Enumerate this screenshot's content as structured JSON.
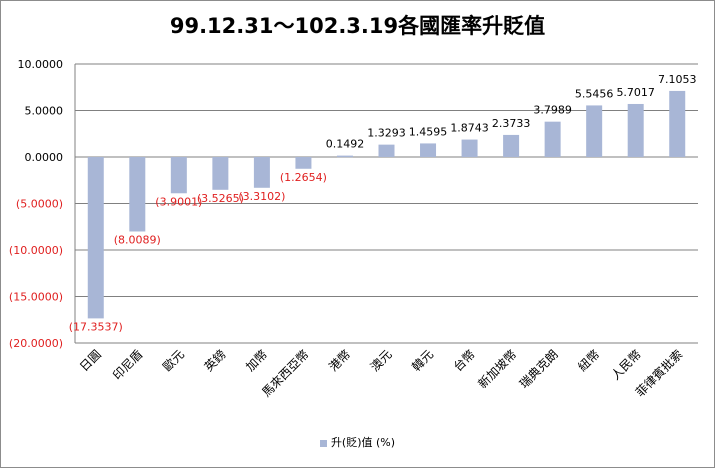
{
  "chart_data": {
    "type": "bar",
    "title": "99.12.31～102.3.19各國匯率升貶值",
    "categories": [
      "日圓",
      "印尼盾",
      "歐元",
      "英鎊",
      "加幣",
      "馬來西亞幣",
      "港幣",
      "澳元",
      "韓元",
      "台幣",
      "新加坡幣",
      "瑞典克朗",
      "紐幣",
      "人民幣",
      "菲律賓批索"
    ],
    "series": [
      {
        "name": "升(貶)值 (%)",
        "values": [
          -17.3537,
          -8.0089,
          -3.9001,
          -3.5265,
          -3.3102,
          -1.2654,
          0.1492,
          1.3293,
          1.4595,
          1.8743,
          2.3733,
          3.7989,
          5.5456,
          5.7017,
          7.1053
        ],
        "labels": [
          "(17.3537)",
          "(8.0089)",
          "(3.9001)",
          "(3.5265)",
          "(3.3102)",
          "(1.2654)",
          "0.1492",
          "1.3293",
          "1.4595",
          "1.8743",
          "2.3733",
          "3.7989",
          "5.5456",
          "5.7017",
          "7.1053"
        ]
      }
    ],
    "ylim": [
      -20,
      10
    ],
    "yticks": [
      10,
      5,
      0,
      -5,
      -10,
      -15,
      -20
    ],
    "ytick_labels": [
      "10.0000",
      "5.0000",
      "0.0000",
      "(5.0000)",
      "(10.0000)",
      "(15.0000)",
      "(20.0000)"
    ],
    "grid": true,
    "legend_position": "bottom",
    "colors": {
      "bar": "#a8b6d6",
      "negative_text": "#e02020",
      "positive_text": "#000000",
      "grid": "#808080"
    }
  }
}
